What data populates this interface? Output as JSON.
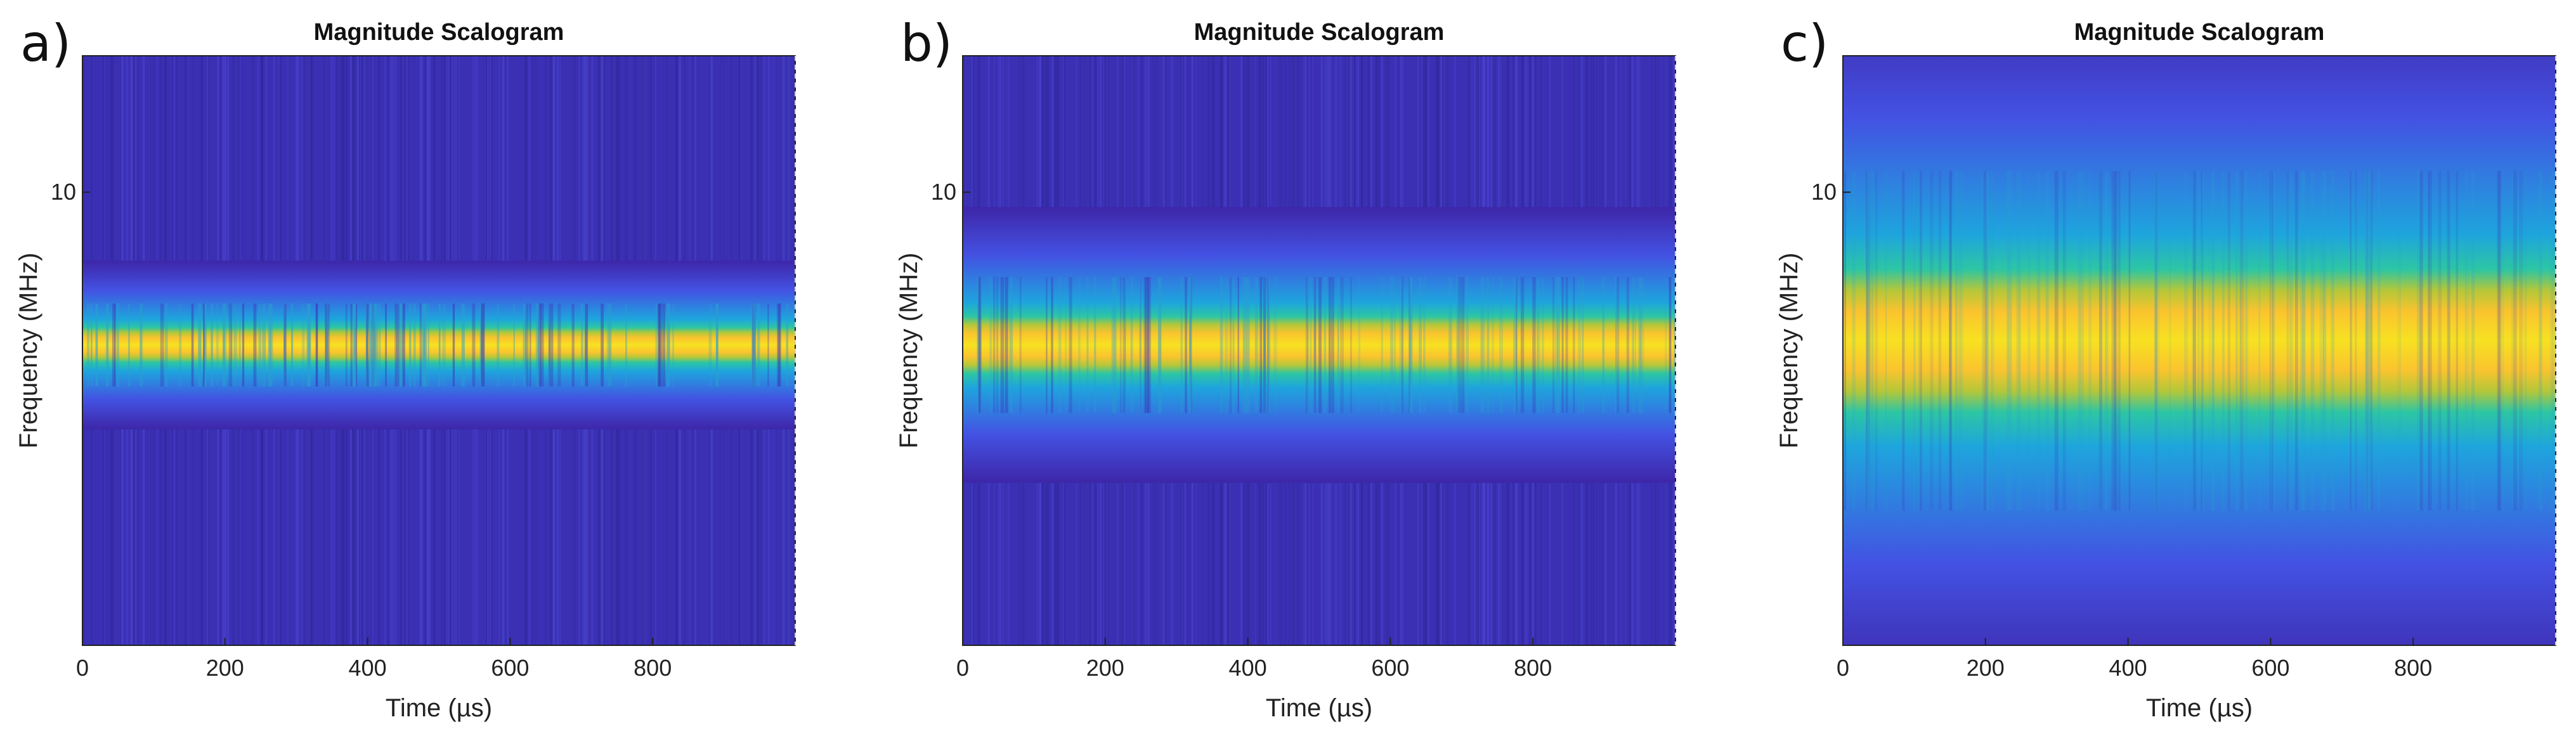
{
  "panels": [
    {
      "letter": "a)",
      "title": "Magnitude Scalogram"
    },
    {
      "letter": "b)",
      "title": "Magnitude Scalogram"
    },
    {
      "letter": "c)",
      "title": "Magnitude Scalogram"
    }
  ],
  "chart_data": [
    {
      "type": "heatmap",
      "title": "Magnitude Scalogram",
      "xlabel": "Time (µs)",
      "ylabel": "Frequency (MHz)",
      "xlim": [
        0,
        1000
      ],
      "x_ticks": [
        0,
        200,
        400,
        600,
        800
      ],
      "x_tick_labels": [
        "0",
        "200",
        "400",
        "600",
        "800"
      ],
      "yscale": "log",
      "ylim": [
        1,
        20
      ],
      "y_ticks": [
        10
      ],
      "y_tick_labels": [
        "10"
      ],
      "band": {
        "center_frequency": 4.6,
        "width_fraction": 0.022,
        "striations": "strong"
      },
      "colormap": [
        "#3e26a8",
        "#4352e3",
        "#1ea5dd",
        "#2cc6a4",
        "#b5c739",
        "#fac42e",
        "#f7e121"
      ]
    },
    {
      "type": "heatmap",
      "title": "Magnitude Scalogram",
      "xlabel": "Time (µs)",
      "ylabel": "Frequency (MHz)",
      "xlim": [
        0,
        1000
      ],
      "x_ticks": [
        0,
        200,
        400,
        600,
        800
      ],
      "x_tick_labels": [
        "0",
        "200",
        "400",
        "600",
        "800"
      ],
      "yscale": "log",
      "ylim": [
        1,
        20
      ],
      "y_ticks": [
        10
      ],
      "y_tick_labels": [
        "10"
      ],
      "band": {
        "center_frequency": 4.6,
        "width_fraction": 0.036,
        "striations": "medium"
      },
      "colormap": [
        "#3e26a8",
        "#4352e3",
        "#1ea5dd",
        "#2cc6a4",
        "#b5c739",
        "#fac42e",
        "#f7e121"
      ]
    },
    {
      "type": "heatmap",
      "title": "Magnitude Scalogram",
      "xlabel": "Time (µs)",
      "ylabel": "Frequency (MHz)",
      "xlim": [
        0,
        1000
      ],
      "x_ticks": [
        0,
        200,
        400,
        600,
        800
      ],
      "x_tick_labels": [
        "0",
        "200",
        "400",
        "600",
        "800"
      ],
      "yscale": "log",
      "ylim": [
        1,
        20
      ],
      "y_ticks": [
        10
      ],
      "y_tick_labels": [
        "10"
      ],
      "band": {
        "center_frequency": 4.7,
        "width_fraction": 0.09,
        "striations": "weak"
      },
      "colormap": [
        "#3e26a8",
        "#4352e3",
        "#1ea5dd",
        "#2cc6a4",
        "#b5c739",
        "#fac42e",
        "#f7e121"
      ]
    }
  ]
}
